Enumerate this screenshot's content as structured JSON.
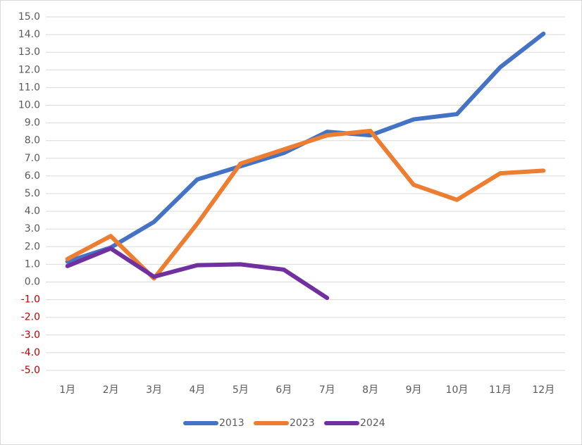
{
  "chart_data": {
    "type": "line",
    "categories": [
      "1月",
      "2月",
      "3月",
      "4月",
      "5月",
      "6月",
      "7月",
      "8月",
      "9月",
      "10月",
      "11月",
      "12月"
    ],
    "series": [
      {
        "name": "2013",
        "color": "#4472c4",
        "values": [
          1.15,
          1.95,
          3.4,
          5.8,
          6.55,
          7.3,
          8.5,
          8.3,
          9.2,
          9.5,
          12.15,
          14.05
        ]
      },
      {
        "name": "2023",
        "color": "#ed7d31",
        "values": [
          1.3,
          2.6,
          0.2,
          3.3,
          6.7,
          7.5,
          8.3,
          8.55,
          5.5,
          4.65,
          6.15,
          6.3
        ]
      },
      {
        "name": "2024",
        "color": "#7030a0",
        "values": [
          0.9,
          1.9,
          0.3,
          0.95,
          1.0,
          0.7,
          -0.9,
          null,
          null,
          null,
          null,
          null
        ]
      }
    ],
    "ylim": [
      -5,
      15
    ],
    "yticks": [
      {
        "value": 15,
        "label": "15.0"
      },
      {
        "value": 14,
        "label": "14.0"
      },
      {
        "value": 13,
        "label": "13.0"
      },
      {
        "value": 12,
        "label": "12.0"
      },
      {
        "value": 11,
        "label": "11.0"
      },
      {
        "value": 10,
        "label": "10.0"
      },
      {
        "value": 9,
        "label": "9.0"
      },
      {
        "value": 8,
        "label": "8.0"
      },
      {
        "value": 7,
        "label": "7.0"
      },
      {
        "value": 6,
        "label": "6.0"
      },
      {
        "value": 5,
        "label": "5.0"
      },
      {
        "value": 4,
        "label": "4.0"
      },
      {
        "value": 3,
        "label": "3.0"
      },
      {
        "value": 2,
        "label": "2.0"
      },
      {
        "value": 1,
        "label": "1.0"
      },
      {
        "value": 0,
        "label": "0.0"
      },
      {
        "value": -1,
        "label": "-1.0"
      },
      {
        "value": -2,
        "label": "-2.0"
      },
      {
        "value": -3,
        "label": "-3.0"
      },
      {
        "value": -4,
        "label": "-4.0"
      },
      {
        "value": -5,
        "label": "-5.0"
      }
    ],
    "grid": true,
    "negative_tick_color": "#c00000",
    "legend": "bottom"
  }
}
